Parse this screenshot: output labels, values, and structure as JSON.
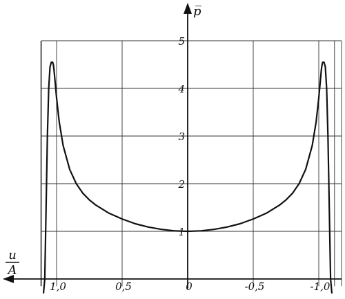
{
  "chart_data": {
    "type": "line",
    "xlabel_top": "u",
    "xlabel_bottom": "A",
    "ylabel": "p̅",
    "x_ticks": [
      "1,0",
      "0,5",
      "0",
      "-0,5",
      "-1,0"
    ],
    "x_tick_values": [
      1.0,
      0.5,
      0,
      -0.5,
      -1.0
    ],
    "y_ticks": [
      "1",
      "2",
      "3",
      "4",
      "5"
    ],
    "y_tick_values": [
      1,
      2,
      3,
      4,
      5
    ],
    "xlim": [
      1.3,
      -1.3
    ],
    "ylim": [
      0,
      5
    ],
    "x_axis_direction": "right-to-left",
    "grid": true,
    "series": [
      {
        "x": [
          1.1,
          1.09,
          1.08,
          1.07,
          1.06,
          1.05,
          1.04,
          1.03,
          1.025,
          1.02,
          1.01,
          1.0,
          0.98,
          0.95,
          0.9,
          0.85,
          0.8,
          0.75,
          0.7,
          0.6,
          0.5,
          0.4,
          0.3,
          0.2,
          0.1,
          0.0,
          -0.1,
          -0.2,
          -0.3,
          -0.4,
          -0.5,
          -0.6,
          -0.7,
          -0.75,
          -0.8,
          -0.85,
          -0.9,
          -0.95,
          -0.98,
          -1.0,
          -1.01,
          -1.02,
          -1.025,
          -1.03,
          -1.04,
          -1.05,
          -1.06,
          -1.07,
          -1.08,
          -1.09,
          -1.1
        ],
        "y": [
          -0.8,
          0.0,
          1.5,
          3.0,
          4.0,
          4.45,
          4.55,
          4.55,
          4.5,
          4.4,
          4.1,
          3.8,
          3.3,
          2.8,
          2.3,
          2.0,
          1.8,
          1.66,
          1.55,
          1.38,
          1.26,
          1.16,
          1.09,
          1.04,
          1.01,
          1.0,
          1.01,
          1.04,
          1.09,
          1.16,
          1.26,
          1.38,
          1.55,
          1.66,
          1.8,
          2.0,
          2.3,
          2.8,
          3.3,
          3.8,
          4.1,
          4.4,
          4.5,
          4.55,
          4.55,
          4.45,
          4.0,
          3.0,
          1.5,
          0.0,
          -0.8
        ]
      }
    ]
  }
}
